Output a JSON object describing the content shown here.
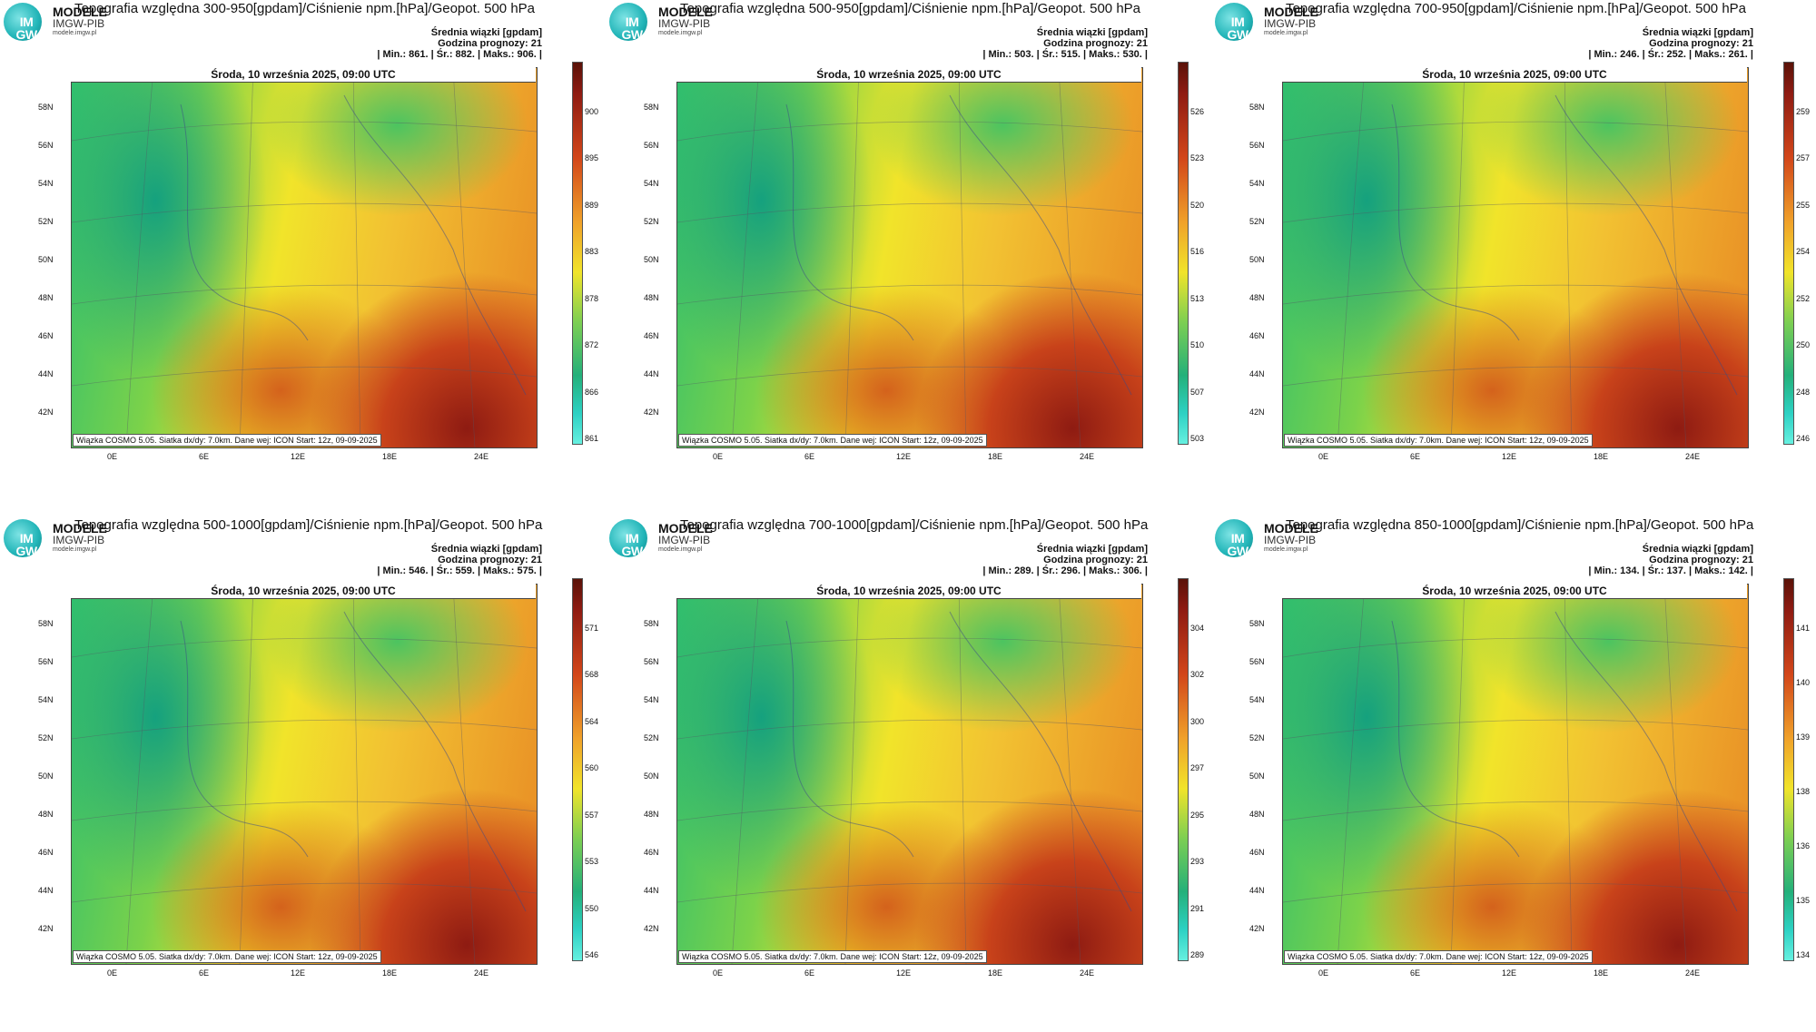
{
  "logo": {
    "line1": "IM",
    "line2": "GW",
    "brand": "MODELE",
    "org": "IMGW-PIB",
    "site": "modele.imgw.pl"
  },
  "common": {
    "mean_label": "Średnia wiązki [gpdam]",
    "forecast_hour": "Godzina prognozy: 21",
    "date": "Środa, 10 września 2025, 09:00 UTC",
    "footer": "Wiązka COSMO 5.05. Siatka dx/dy: 7.0km. Dane wej: ICON Start: 12z, 09-09-2025",
    "lat_labels": [
      "58N",
      "56N",
      "54N",
      "52N",
      "50N",
      "48N",
      "46N",
      "44N",
      "42N"
    ],
    "lon_labels": [
      "0E",
      "6E",
      "12E",
      "18E",
      "24E"
    ]
  },
  "panels": [
    {
      "title": "Topografia względna 300-950[gpdam]/Ciśnienie npm.[hPa]/Geopot. 500 hPa",
      "stats": "| Min.:   861. | Śr.:   882. | Maks.:   906. |",
      "colorbar": [
        "900",
        "895",
        "889",
        "883",
        "878",
        "872",
        "866",
        "861"
      ]
    },
    {
      "title": "Topografia względna 500-950[gpdam]/Ciśnienie npm.[hPa]/Geopot. 500 hPa",
      "stats": "| Min.:   503. | Śr.:   515. | Maks.:   530. |",
      "colorbar": [
        "526",
        "523",
        "520",
        "516",
        "513",
        "510",
        "507",
        "503"
      ]
    },
    {
      "title": "Topografia względna 700-950[gpdam]/Ciśnienie npm.[hPa]/Geopot. 500 hPa",
      "stats": "| Min.:   246. | Śr.:   252. | Maks.:   261. |",
      "colorbar": [
        "259",
        "257",
        "255",
        "254",
        "252",
        "250",
        "248",
        "246"
      ]
    },
    {
      "title": "Topografia względna 500-1000[gpdam]/Ciśnienie npm.[hPa]/Geopot. 500 hPa",
      "stats": "| Min.:   546. | Śr.:   559. | Maks.:   575. |",
      "colorbar": [
        "571",
        "568",
        "564",
        "560",
        "557",
        "553",
        "550",
        "546"
      ]
    },
    {
      "title": "Topografia względna 700-1000[gpdam]/Ciśnienie npm.[hPa]/Geopot. 500 hPa",
      "stats": "| Min.:   289. | Śr.:   296. | Maks.:   306. |",
      "colorbar": [
        "304",
        "302",
        "300",
        "297",
        "295",
        "293",
        "291",
        "289"
      ]
    },
    {
      "title": "Topografia względna 850-1000[gpdam]/Ciśnienie npm.[hPa]/Geopot. 500 hPa",
      "stats": "| Min.:   134. | Śr.:   137. | Maks.:   142. |",
      "colorbar": [
        "141",
        "140",
        "139",
        "138",
        "136",
        "135",
        "134"
      ]
    }
  ],
  "colors": {
    "low": "#1fb28a",
    "mid": "#f1e42a",
    "high": "#8e1b12"
  }
}
